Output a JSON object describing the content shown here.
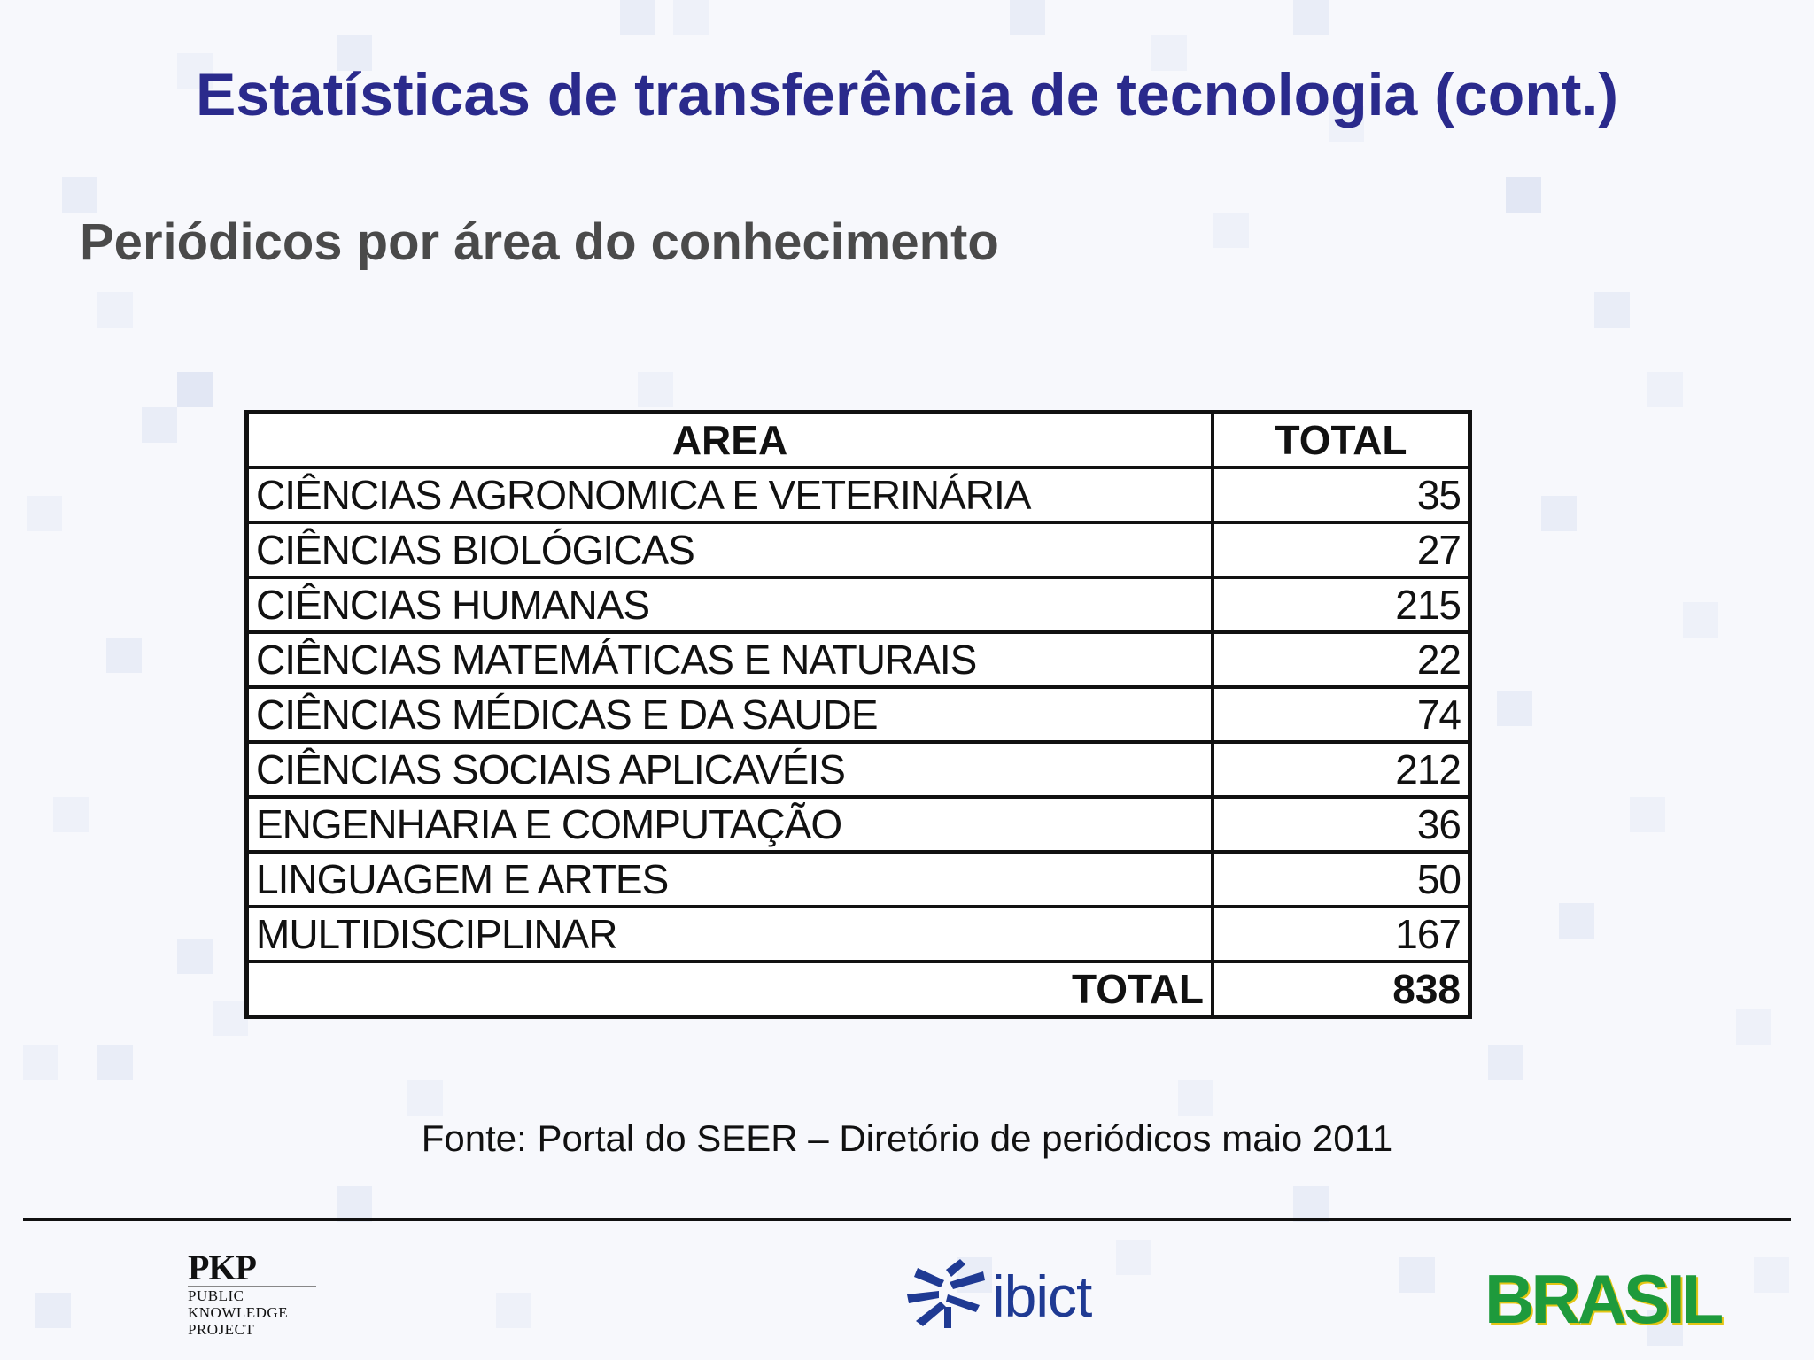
{
  "slide": {
    "title": "Estatísticas de transferência de tecnologia (cont.)",
    "subtitle": "Periódicos por área do conhecimento"
  },
  "table": {
    "headers": {
      "area": "AREA",
      "total": "TOTAL"
    },
    "rows": [
      {
        "area": "CIÊNCIAS AGRONOMICA E VETERINÁRIA",
        "total": "35"
      },
      {
        "area": "CIÊNCIAS BIOLÓGICAS",
        "total": "27"
      },
      {
        "area": "CIÊNCIAS HUMANAS",
        "total": "215"
      },
      {
        "area": "CIÊNCIAS MATEMÁTICAS E NATURAIS",
        "total": "22"
      },
      {
        "area": "CIÊNCIAS MÉDICAS E DA SAUDE",
        "total": "74"
      },
      {
        "area": "CIÊNCIAS SOCIAIS APLICAVÉIS",
        "total": "212"
      },
      {
        "area": "ENGENHARIA E COMPUTAÇÃO",
        "total": "36"
      },
      {
        "area": "LINGUAGEM E ARTES",
        "total": "50"
      },
      {
        "area": "MULTIDISCIPLINAR",
        "total": "167"
      }
    ],
    "footer": {
      "label": "TOTAL",
      "value": "838"
    }
  },
  "source": "Fonte: Portal do SEER – Diretório de periódicos  maio 2011",
  "logos": {
    "pkp": {
      "abbr": "PKP",
      "line1": "PUBLIC",
      "line2": "KNOWLEDGE",
      "line3": "PROJECT",
      "icon": "pkp-logo"
    },
    "ibict": {
      "text": "ibict",
      "icon": "ibict-star-icon",
      "color": "#1f3a93"
    },
    "brasil": {
      "text": "BRASIL",
      "icon": "brasil-logo",
      "color": "#1e9a3c",
      "accent": "#e3c614"
    }
  },
  "colors": {
    "title": "#2a2a8c",
    "subtitle": "#4a4a4a",
    "background": "#f7f8fc"
  }
}
